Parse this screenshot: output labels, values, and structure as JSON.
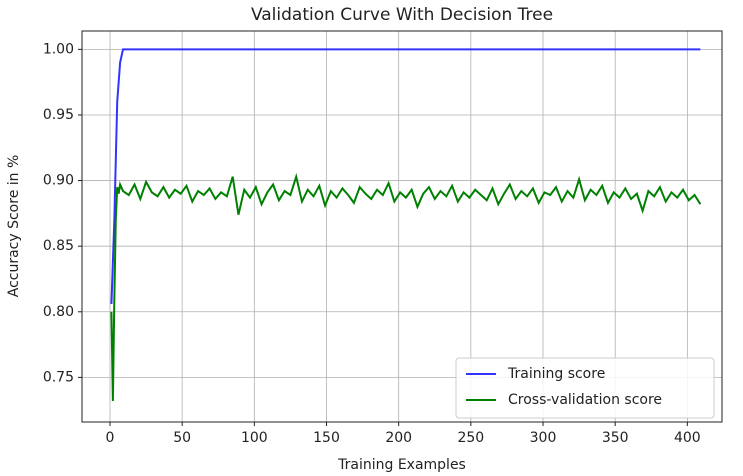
{
  "chart_data": {
    "type": "line",
    "title": "Validation Curve With Decision Tree",
    "x_label": "Training Examples",
    "y_label": "Accuracy Score in %",
    "xlim": [
      -19.4,
      424
    ],
    "ylim": [
      0.716,
      1.014
    ],
    "xticks": [
      0,
      50,
      100,
      150,
      200,
      250,
      300,
      350,
      400
    ],
    "yticks": [
      0.75,
      {
        "value": 0.8,
        "label": "0.80"
      },
      0.85,
      {
        "value": 0.9,
        "label": "0.90"
      },
      0.95,
      {
        "value": 1.0,
        "label": "1.00"
      }
    ],
    "grid": true,
    "legend": "lower right",
    "series": [
      {
        "name": "Training score",
        "color": "#3333ff",
        "x": [
          1,
          3,
          5,
          7,
          9,
          409
        ],
        "values": [
          0.806,
          0.87,
          0.96,
          0.99,
          1.0,
          1.0
        ]
      },
      {
        "name": "Cross-validation score",
        "color": "#008000",
        "x": [
          1,
          2,
          3,
          4,
          5,
          6,
          7,
          9,
          13,
          17,
          21,
          25,
          29,
          33,
          37,
          41,
          45,
          49,
          53,
          57,
          61,
          65,
          69,
          73,
          77,
          81,
          85,
          89,
          93,
          97,
          101,
          105,
          109,
          113,
          117,
          121,
          125,
          129,
          133,
          137,
          141,
          145,
          149,
          153,
          157,
          161,
          165,
          169,
          173,
          177,
          181,
          185,
          189,
          193,
          197,
          201,
          205,
          209,
          213,
          217,
          221,
          225,
          229,
          233,
          237,
          241,
          245,
          249,
          253,
          257,
          261,
          265,
          269,
          273,
          277,
          281,
          285,
          289,
          293,
          297,
          301,
          305,
          309,
          313,
          317,
          321,
          325,
          329,
          333,
          337,
          341,
          345,
          349,
          353,
          357,
          361,
          365,
          369,
          373,
          377,
          381,
          385,
          389,
          393,
          397,
          401,
          405,
          409
        ],
        "values": [
          0.8,
          0.732,
          0.81,
          0.87,
          0.895,
          0.89,
          0.897,
          0.892,
          0.889,
          0.897,
          0.886,
          0.899,
          0.891,
          0.888,
          0.895,
          0.887,
          0.893,
          0.89,
          0.896,
          0.884,
          0.892,
          0.889,
          0.894,
          0.886,
          0.891,
          0.888,
          0.903,
          0.874,
          0.893,
          0.887,
          0.895,
          0.882,
          0.891,
          0.897,
          0.885,
          0.892,
          0.889,
          0.903,
          0.884,
          0.893,
          0.888,
          0.896,
          0.881,
          0.892,
          0.887,
          0.894,
          0.889,
          0.883,
          0.895,
          0.89,
          0.886,
          0.893,
          0.889,
          0.898,
          0.884,
          0.891,
          0.887,
          0.893,
          0.88,
          0.89,
          0.895,
          0.886,
          0.892,
          0.888,
          0.896,
          0.884,
          0.891,
          0.887,
          0.893,
          0.889,
          0.885,
          0.894,
          0.882,
          0.89,
          0.897,
          0.886,
          0.892,
          0.888,
          0.894,
          0.883,
          0.891,
          0.889,
          0.895,
          0.884,
          0.892,
          0.887,
          0.901,
          0.885,
          0.893,
          0.889,
          0.896,
          0.883,
          0.891,
          0.887,
          0.894,
          0.886,
          0.89,
          0.877,
          0.892,
          0.888,
          0.895,
          0.884,
          0.891,
          0.887,
          0.893,
          0.885,
          0.889,
          0.882
        ]
      }
    ]
  }
}
